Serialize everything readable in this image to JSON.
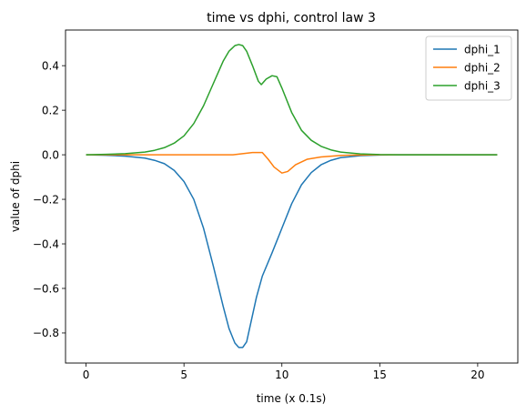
{
  "chart_data": {
    "type": "line",
    "title": "time vs dphi, control law 3",
    "xlabel": "time (x 0.1s)",
    "ylabel": "value of dphi",
    "xlim": [
      -1.05,
      22.05
    ],
    "ylim": [
      -0.935,
      0.56
    ],
    "xticks": [
      0,
      5,
      10,
      15,
      20
    ],
    "xtick_labels": [
      "0",
      "5",
      "10",
      "15",
      "20"
    ],
    "yticks": [
      -0.8,
      -0.6,
      -0.4,
      -0.2,
      0.0,
      0.2,
      0.4
    ],
    "ytick_labels": [
      "−0.8",
      "−0.6",
      "−0.4",
      "−0.2",
      "0.0",
      "0.2",
      "0.4"
    ],
    "grid": false,
    "legend_position": "top-right",
    "series": [
      {
        "name": "dphi_1",
        "color": "#1f77b4",
        "x": [
          0,
          1,
          2,
          3,
          3.5,
          4,
          4.5,
          5,
          5.5,
          6,
          6.5,
          7,
          7.3,
          7.6,
          7.8,
          8,
          8.2,
          8.4,
          8.7,
          9,
          9.5,
          10,
          10.5,
          11,
          11.5,
          12,
          12.5,
          13,
          14,
          15,
          16,
          18,
          21
        ],
        "y": [
          0.0,
          -0.002,
          -0.006,
          -0.015,
          -0.025,
          -0.04,
          -0.07,
          -0.12,
          -0.2,
          -0.33,
          -0.5,
          -0.68,
          -0.78,
          -0.845,
          -0.865,
          -0.865,
          -0.84,
          -0.76,
          -0.64,
          -0.545,
          -0.44,
          -0.33,
          -0.22,
          -0.135,
          -0.08,
          -0.045,
          -0.025,
          -0.013,
          -0.004,
          -0.001,
          0.0,
          0.0,
          0.0
        ]
      },
      {
        "name": "dphi_2",
        "color": "#ff7f0e",
        "x": [
          0,
          2,
          4,
          6,
          7.5,
          8,
          8.5,
          9,
          9.3,
          9.6,
          10,
          10.3,
          10.7,
          11.3,
          12,
          13,
          14,
          15,
          18,
          21
        ],
        "y": [
          0.0,
          0.0,
          0.0,
          0.0,
          0.0,
          0.005,
          0.01,
          0.01,
          -0.02,
          -0.055,
          -0.082,
          -0.075,
          -0.045,
          -0.02,
          -0.01,
          -0.003,
          -0.001,
          0.0,
          0.0,
          0.0
        ]
      },
      {
        "name": "dphi_3",
        "color": "#2ca02c",
        "x": [
          0,
          1,
          2,
          3,
          3.5,
          4,
          4.5,
          5,
          5.5,
          6,
          6.5,
          7,
          7.3,
          7.6,
          7.8,
          8,
          8.2,
          8.5,
          8.8,
          8.95,
          9.2,
          9.5,
          9.75,
          10,
          10.5,
          11,
          11.5,
          12,
          12.5,
          13,
          14,
          15,
          16,
          18,
          21
        ],
        "y": [
          0.0,
          0.002,
          0.005,
          0.012,
          0.02,
          0.032,
          0.052,
          0.085,
          0.14,
          0.22,
          0.32,
          0.42,
          0.465,
          0.49,
          0.495,
          0.49,
          0.465,
          0.4,
          0.33,
          0.315,
          0.34,
          0.355,
          0.35,
          0.3,
          0.19,
          0.11,
          0.065,
          0.038,
          0.022,
          0.012,
          0.004,
          0.001,
          0.0,
          0.0,
          0.0
        ]
      }
    ]
  }
}
